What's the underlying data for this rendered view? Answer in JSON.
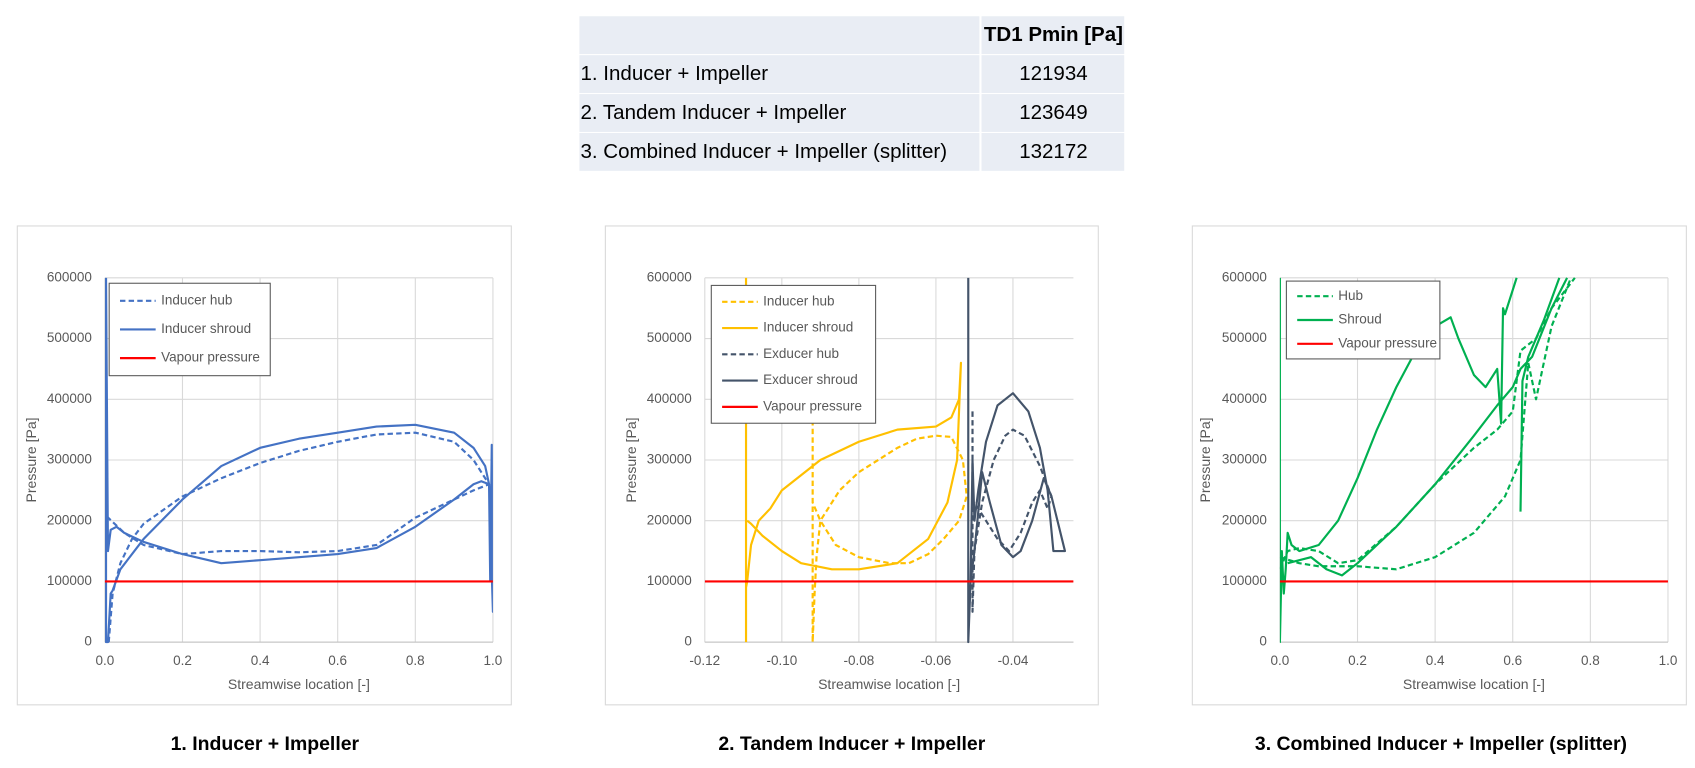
{
  "table": {
    "columns": [
      "TD1 Pmin [Pa]"
    ],
    "rows": [
      [
        "1. Inducer + Impeller",
        121934
      ],
      [
        "2. Tandem Inducer + Impeller",
        123649
      ],
      [
        "3. Combined Inducer + Impeller (splitter)",
        132172
      ]
    ]
  },
  "chart_data": [
    {
      "type": "line",
      "title": "1. Inducer + Impeller",
      "x_label": "Streamwise location [-]",
      "y_label": "Pressure [Pa]",
      "xlim": [
        0,
        1
      ],
      "xticks": [
        {
          "value": 0,
          "label": "0.0"
        },
        0.2,
        0.4,
        0.6,
        0.8,
        {
          "value": 1,
          "label": "1.0"
        }
      ],
      "ylim": [
        0,
        600000
      ],
      "yticks": [
        0,
        100000,
        200000,
        300000,
        400000,
        500000,
        600000
      ],
      "grid": true,
      "legend": "upper left",
      "series": [
        {
          "name": "Inducer hub",
          "color": "#4472c4",
          "style": "dashed",
          "x": [
            0.01,
            0.02,
            0.04,
            0.07,
            0.1,
            0.2,
            0.3,
            0.4,
            0.5,
            0.6,
            0.7,
            0.8,
            0.9,
            0.95,
            0.99,
            0.95,
            0.9,
            0.8,
            0.7,
            0.6,
            0.5,
            0.4,
            0.3,
            0.2,
            0.1,
            0.05,
            0.0
          ],
          "values": [
            0,
            80000,
            130000,
            170000,
            195000,
            240000,
            270000,
            295000,
            315000,
            330000,
            342000,
            345000,
            330000,
            300000,
            260000,
            250000,
            235000,
            205000,
            160000,
            150000,
            148000,
            150000,
            150000,
            145000,
            160000,
            180000,
            210000
          ]
        },
        {
          "name": "Inducer shroud",
          "color": "#4472c4",
          "style": "solid",
          "x": [
            0.003,
            0.003,
            0.008,
            0.015,
            0.02,
            0.04,
            0.1,
            0.2,
            0.3,
            0.4,
            0.5,
            0.6,
            0.7,
            0.8,
            0.9,
            0.95,
            0.98,
            0.99,
            0.993,
            0.997,
            1.0,
            0.99,
            0.97,
            0.95,
            0.9,
            0.8,
            0.7,
            0.6,
            0.5,
            0.4,
            0.3,
            0.2,
            0.1,
            0.05,
            0.03,
            0.015,
            0.008,
            0.003
          ],
          "values": [
            600000,
            0,
            0,
            80000,
            85000,
            120000,
            170000,
            235000,
            290000,
            320000,
            335000,
            345000,
            355000,
            358000,
            345000,
            320000,
            290000,
            260000,
            100000,
            325000,
            50000,
            260000,
            265000,
            260000,
            235000,
            190000,
            155000,
            145000,
            140000,
            135000,
            130000,
            145000,
            165000,
            180000,
            190000,
            185000,
            150000,
            600000
          ]
        },
        {
          "name": "Vapour pressure",
          "color": "#ff0000",
          "style": "solid",
          "x": [
            0,
            1
          ],
          "values": [
            100000,
            100000
          ]
        }
      ]
    },
    {
      "type": "line",
      "title": "2. Tandem Inducer + Impeller",
      "x_label": "Streamwise location [-]",
      "y_label": "Pressure [Pa]",
      "xlim": [
        -0.12,
        -0.0243
      ],
      "xticks": [
        -0.12,
        {
          "value": -0.1,
          "label": "-0.10"
        },
        -0.08,
        -0.06,
        -0.04
      ],
      "ylim": [
        0,
        600000
      ],
      "yticks": [
        0,
        100000,
        200000,
        300000,
        400000,
        500000,
        600000
      ],
      "grid": true,
      "legend": "upper left",
      "series": [
        {
          "name": "Inducer hub",
          "color": "#ffc000",
          "style": "dashed",
          "x": [
            -0.092,
            -0.092,
            -0.0915,
            -0.091,
            -0.09,
            -0.085,
            -0.08,
            -0.07,
            -0.065,
            -0.06,
            -0.056,
            -0.053,
            -0.052,
            -0.054,
            -0.058,
            -0.062,
            -0.067,
            -0.072,
            -0.08,
            -0.086,
            -0.09,
            -0.092
          ],
          "values": [
            380000,
            0,
            80000,
            140000,
            200000,
            250000,
            280000,
            320000,
            335000,
            340000,
            338000,
            300000,
            240000,
            200000,
            170000,
            145000,
            130000,
            130000,
            140000,
            160000,
            200000,
            230000
          ]
        },
        {
          "name": "Inducer shroud",
          "color": "#ffc000",
          "style": "solid",
          "x": [
            -0.1093,
            -0.1093,
            null,
            -0.1093,
            -0.109,
            -0.108,
            -0.106,
            -0.103,
            -0.1,
            -0.09,
            -0.08,
            -0.07,
            -0.06,
            -0.056,
            -0.054,
            -0.0535,
            -0.0545,
            -0.057,
            -0.062,
            -0.07,
            -0.08,
            -0.087,
            -0.095,
            -0.1,
            -0.105,
            -0.108,
            -0.109
          ],
          "values": [
            600000,
            0,
            null,
            90000,
            100000,
            160000,
            200000,
            220000,
            250000,
            300000,
            330000,
            350000,
            355000,
            370000,
            400000,
            460000,
            300000,
            230000,
            170000,
            130000,
            120000,
            120000,
            130000,
            150000,
            175000,
            195000,
            200000
          ]
        },
        {
          "name": "Exducer hub",
          "color": "#44546a",
          "style": "dashed",
          "x": [
            -0.0505,
            -0.0505,
            -0.05,
            -0.048,
            -0.045,
            -0.042,
            -0.04,
            -0.037,
            -0.033,
            -0.03,
            -0.031,
            -0.033,
            -0.035,
            -0.038,
            -0.041,
            -0.044,
            -0.047,
            -0.05
          ],
          "values": [
            380000,
            50000,
            150000,
            230000,
            300000,
            340000,
            350000,
            340000,
            290000,
            240000,
            220000,
            250000,
            230000,
            180000,
            150000,
            170000,
            200000,
            230000
          ]
        },
        {
          "name": "Exducer shroud",
          "color": "#44546a",
          "style": "solid",
          "x": [
            -0.0516,
            -0.0516,
            -0.051,
            -0.0505,
            -0.05,
            -0.049,
            -0.047,
            -0.044,
            -0.04,
            -0.036,
            -0.033,
            -0.031,
            -0.0295,
            -0.0265,
            -0.03,
            -0.032,
            -0.035,
            -0.038,
            -0.04,
            -0.043,
            -0.046,
            -0.048,
            -0.05,
            -0.051
          ],
          "values": [
            600000,
            0,
            100000,
            300000,
            200000,
            250000,
            330000,
            390000,
            410000,
            380000,
            320000,
            250000,
            150000,
            150000,
            240000,
            270000,
            200000,
            150000,
            140000,
            160000,
            230000,
            280000,
            150000,
            100000
          ]
        },
        {
          "name": "Vapour pressure",
          "color": "#ff0000",
          "style": "solid",
          "x": [
            -0.12,
            -0.0243
          ],
          "values": [
            100000,
            100000
          ]
        }
      ]
    },
    {
      "type": "line",
      "title": "3. Combined Inducer + Impeller (splitter)",
      "x_label": "Streamwise location [-]",
      "y_label": "Pressure [Pa]",
      "xlim": [
        0,
        1
      ],
      "xticks": [
        {
          "value": 0,
          "label": "0.0"
        },
        0.2,
        0.4,
        0.6,
        0.8,
        {
          "value": 1,
          "label": "1.0"
        }
      ],
      "ylim": [
        0,
        600000
      ],
      "yticks": [
        0,
        100000,
        200000,
        300000,
        400000,
        500000,
        600000
      ],
      "grid": true,
      "legend": "upper left",
      "series": [
        {
          "name": "Hub",
          "color": "#00b050",
          "style": "dashed",
          "x": [
            0.0,
            0.02,
            0.05,
            0.1,
            0.15,
            0.2,
            0.3,
            0.4,
            0.5,
            0.56,
            0.6,
            0.62,
            0.66,
            0.7,
            0.76,
            null,
            0.0,
            0.05,
            0.1,
            0.2,
            0.3,
            0.4,
            0.5,
            0.58,
            0.62,
            0.64,
            0.66,
            0.7,
            0.75
          ],
          "values": [
            120000,
            150000,
            155000,
            150000,
            130000,
            135000,
            190000,
            260000,
            320000,
            350000,
            380000,
            480000,
            500000,
            550000,
            600000,
            null,
            140000,
            130000,
            125000,
            125000,
            120000,
            140000,
            180000,
            240000,
            300000,
            460000,
            400000,
            520000,
            600000
          ]
        },
        {
          "name": "Shroud",
          "color": "#00b050",
          "style": "solid",
          "x": [
            0.0,
            0.0,
            0.005,
            0.01,
            0.015,
            0.02,
            0.03,
            0.05,
            0.1,
            0.15,
            0.2,
            0.25,
            0.3,
            0.35,
            0.4,
            0.44,
            0.46,
            0.5,
            0.53,
            0.56,
            0.57,
            0.575,
            0.58,
            0.6,
            0.61,
            null,
            0.02,
            0.08,
            0.12,
            0.16,
            0.2,
            0.3,
            0.4,
            0.5,
            0.56,
            0.6,
            0.62,
            0.65,
            0.7,
            0.74,
            null,
            0.62,
            0.625,
            0.64,
            0.68,
            0.72
          ],
          "values": [
            600000,
            0,
            150000,
            80000,
            120000,
            180000,
            160000,
            150000,
            160000,
            200000,
            270000,
            350000,
            420000,
            480000,
            520000,
            535000,
            500000,
            440000,
            420000,
            450000,
            360000,
            550000,
            540000,
            580000,
            600000,
            null,
            130000,
            140000,
            120000,
            110000,
            130000,
            190000,
            260000,
            340000,
            390000,
            420000,
            450000,
            470000,
            550000,
            600000,
            null,
            215000,
            430000,
            470000,
            530000,
            600000
          ]
        },
        {
          "name": "Vapour pressure",
          "color": "#ff0000",
          "style": "solid",
          "x": [
            0,
            1
          ],
          "values": [
            100000,
            100000
          ]
        }
      ]
    }
  ]
}
